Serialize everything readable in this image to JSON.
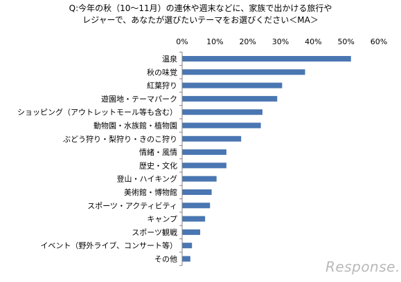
{
  "chart_data": {
    "type": "bar",
    "orientation": "horizontal",
    "title_lines": [
      "Q:今年の秋（10〜11月）の連休や週末などに、家族で出かける旅行や",
      "レジャーで、あなたが選びたいテーマをお選びください＜MA＞"
    ],
    "categories": [
      "温泉",
      "秋の味覚",
      "紅葉狩り",
      "遊園地・テーマパーク",
      "ショッピング（アウトレットモール等も含む）",
      "動物園・水族館・植物園",
      "ぶどう狩り・梨狩り・きのこ狩り",
      "情緒・風情",
      "歴史・文化",
      "登山・ハイキング",
      "美術館・博物館",
      "スポーツ・アクティビティ",
      "キャンプ",
      "スポーツ観戦",
      "イベント（野外ライブ、コンサート等）",
      "その他"
    ],
    "values": [
      51.5,
      37.5,
      30.5,
      29,
      24.5,
      24,
      18,
      13.5,
      13.5,
      10.5,
      9,
      8.5,
      7,
      5.5,
      3,
      2.5
    ],
    "xlim": [
      0,
      60
    ],
    "x_ticks": [
      "0%",
      "10%",
      "20%",
      "30%",
      "40%",
      "50%",
      "60%"
    ],
    "bar_color": "#4a76b2",
    "grid": false
  },
  "watermark": {
    "text": "Response."
  }
}
